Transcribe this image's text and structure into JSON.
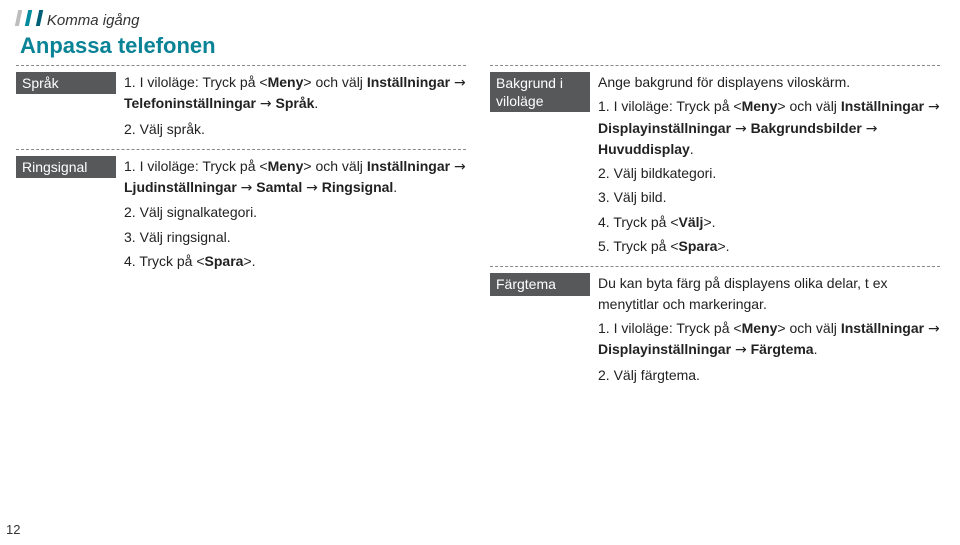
{
  "header": {
    "label": "Komma igång",
    "marker_colors": [
      "#bdbdbd",
      "#008b9e",
      "#005f78"
    ]
  },
  "section_title": "Anpassa telefonen",
  "section_title_color": "#0a8396",
  "label_bg": "#57585a",
  "label_fg": "#ffffff",
  "page_number": "12",
  "left": [
    {
      "label": "Språk",
      "intro": null,
      "steps": [
        "1. I viloläge: Tryck på <<b>Meny</b>> och välj <b>Inställningar</b> → <b>Telefoninställningar</b> → <b>Språk</b>.",
        "2. Välj språk."
      ]
    },
    {
      "label": "Ringsignal",
      "intro": null,
      "steps": [
        "1. I viloläge: Tryck på <<b>Meny</b>> och välj <b>Inställningar</b> → <b>Ljudinställningar</b> → <b>Samtal</b> → <b>Ringsignal</b>.",
        "2. Välj signalkategori.",
        "3. Välj ringsignal.",
        "4. Tryck på <<b>Spara</b>>."
      ]
    }
  ],
  "right": [
    {
      "label": "Bakgrund i viloläge",
      "intro": "Ange bakgrund för displayens viloskärm.",
      "steps": [
        "1. I viloläge: Tryck på <<b>Meny</b>> och välj <b>Inställningar</b> → <b>Displayinställningar</b> → <b>Bakgrundsbilder</b> → <b>Huvuddisplay</b>.",
        "2. Välj bildkategori.",
        "3. Välj bild.",
        "4. Tryck på <<b>Välj</b>>.",
        "5. Tryck på <<b>Spara</b>>."
      ]
    },
    {
      "label": "Färgtema",
      "intro": "Du kan byta färg på displayens olika delar, t ex menytitlar och markeringar.",
      "steps": [
        "1. I viloläge: Tryck på <<b>Meny</b>> och välj <b>Inställningar</b> → <b>Displayinställningar</b> → <b>Färgtema</b>.",
        "2. Välj färgtema."
      ]
    }
  ]
}
